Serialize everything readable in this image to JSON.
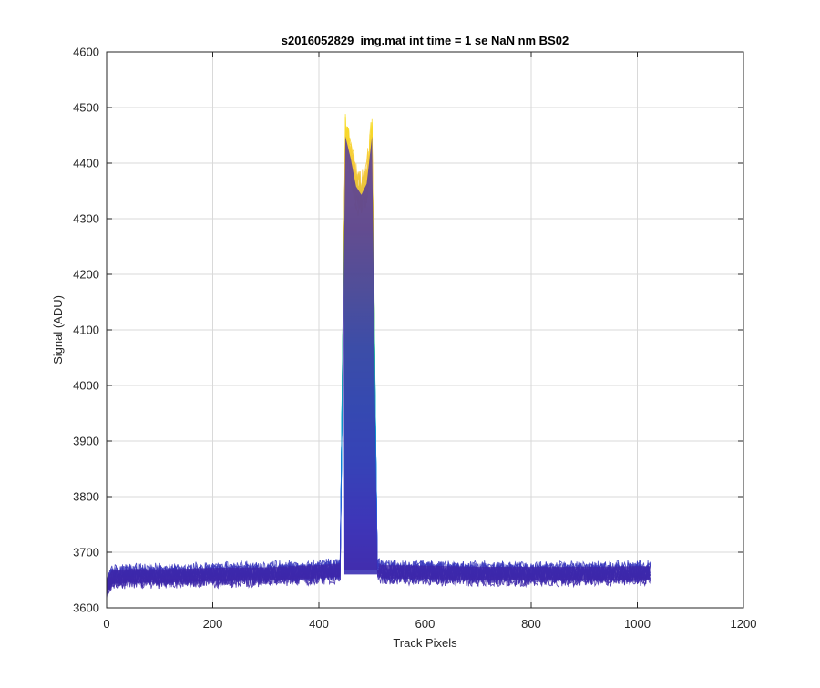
{
  "chart_data": {
    "type": "line",
    "title": "s2016052829_img.mat int time = 1 se  NaN nm BS02",
    "xlabel": "Track Pixels",
    "ylabel": "Signal (ADU)",
    "xlim": [
      0,
      1200
    ],
    "ylim": [
      3600,
      4600
    ],
    "x_ticks": [
      0,
      200,
      400,
      600,
      800,
      1000,
      1200
    ],
    "y_ticks": [
      3600,
      3700,
      3800,
      3900,
      4000,
      4100,
      4200,
      4300,
      4400,
      4500,
      4600
    ],
    "grid": true,
    "legend": "none",
    "colormap": [
      "#3e26a8",
      "#2c54e2",
      "#0b8de0",
      "#06adc4",
      "#25bd9c",
      "#7ebf5c",
      "#d0b934",
      "#f6c83a",
      "#f8e21e"
    ],
    "series": [
      {
        "x": [
          0,
          10,
          50,
          100,
          200,
          300,
          400,
          440,
          450,
          460,
          470,
          480,
          490,
          500,
          510,
          520,
          600,
          700,
          800,
          900,
          1000,
          1024
        ],
        "values": [
          3640,
          3655,
          3658,
          3657,
          3660,
          3661,
          3665,
          3668,
          4460,
          4420,
          4370,
          4355,
          4375,
          4460,
          3670,
          3665,
          3664,
          3662,
          3662,
          3662,
          3663,
          3663
        ]
      }
    ]
  }
}
